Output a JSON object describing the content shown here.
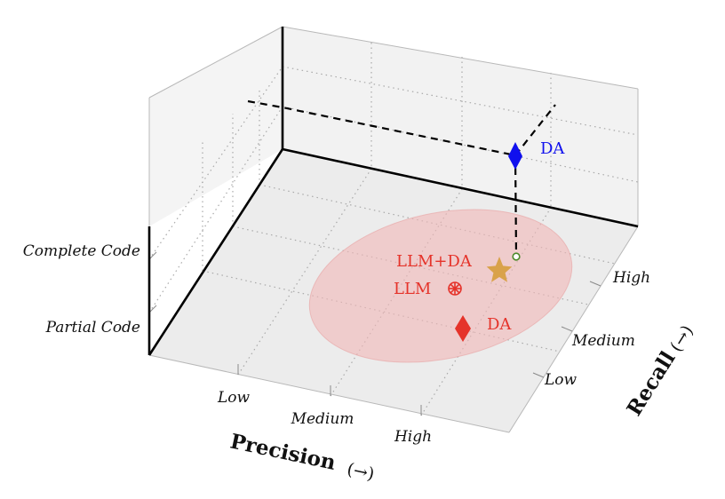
{
  "axes": {
    "precision": {
      "title": "Precision",
      "arrow": "(→)",
      "ticks": [
        "Low",
        "Medium",
        "High"
      ]
    },
    "recall": {
      "title": "Recall",
      "arrow": "(→)",
      "ticks": [
        "Low",
        "Medium",
        "High"
      ]
    },
    "code": {
      "ticks": [
        "Partial Code",
        "Complete Code"
      ]
    }
  },
  "points": {
    "da_projection": {
      "label": "DA",
      "color": "#1010ee"
    },
    "llm_da": {
      "label": "LLM+DA",
      "color": "#d9a24a",
      "label_color": "#e5332a"
    },
    "llm": {
      "label": "LLM",
      "color": "#e5332a"
    },
    "da": {
      "label": "DA",
      "color": "#e5332a"
    }
  },
  "region_color": "#f2b8b8"
}
